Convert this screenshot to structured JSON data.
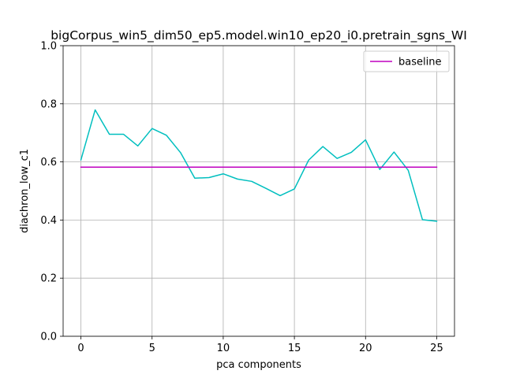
{
  "chart_data": {
    "type": "line",
    "title": "bigCorpus_win5_dim50_ep5.model.win10_ep20_i0.pretrain_sgns_WI",
    "xlabel": "pca components",
    "ylabel": "diachron_low_c1",
    "xlim": [
      -1.25,
      26.25
    ],
    "ylim": [
      0.0,
      1.0
    ],
    "xticks": [
      0,
      5,
      10,
      15,
      20,
      25
    ],
    "yticks": [
      0.0,
      0.2,
      0.4,
      0.6,
      0.8,
      1.0
    ],
    "xtick_labels": [
      "0",
      "5",
      "10",
      "15",
      "20",
      "25"
    ],
    "ytick_labels": [
      "0.0",
      "0.2",
      "0.4",
      "0.6",
      "0.8",
      "1.0"
    ],
    "grid": true,
    "legend": {
      "placement": "top-right",
      "entries": [
        "baseline"
      ]
    },
    "series": [
      {
        "name": "",
        "color": "#00bfbf",
        "x": [
          0,
          1,
          2,
          3,
          4,
          5,
          6,
          7,
          8,
          9,
          10,
          11,
          12,
          13,
          14,
          15,
          16,
          17,
          18,
          19,
          20,
          21,
          22,
          23,
          24,
          25
        ],
        "values": [
          0.607,
          0.779,
          0.695,
          0.695,
          0.655,
          0.715,
          0.692,
          0.632,
          0.544,
          0.546,
          0.559,
          0.541,
          0.533,
          0.509,
          0.484,
          0.507,
          0.606,
          0.653,
          0.612,
          0.633,
          0.676,
          0.574,
          0.634,
          0.571,
          0.401,
          0.396
        ]
      },
      {
        "name": "baseline",
        "color": "#bf00bf",
        "x": [
          0,
          25
        ],
        "values": [
          0.582,
          0.582
        ]
      }
    ]
  }
}
